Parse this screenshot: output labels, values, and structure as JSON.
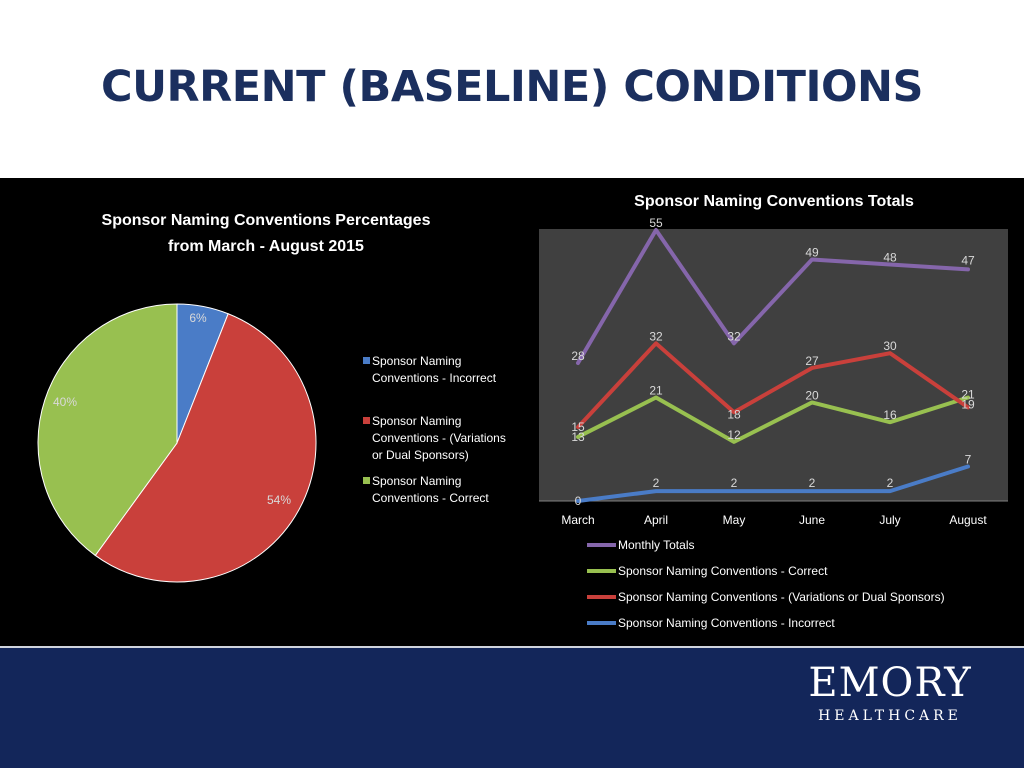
{
  "slide": {
    "title": "CURRENT (BASELINE) CONDITIONS"
  },
  "brand": {
    "logo_word": "EMORY",
    "logo_sub": "HEALTHCARE"
  },
  "colors": {
    "title": "#1b2f5e",
    "footer": "#13265a",
    "incorrect": "#4a7cc7",
    "variations": "#c9403b",
    "correct": "#98c050",
    "monthly": "#8566ab"
  },
  "chart_data": [
    {
      "type": "pie",
      "title": "Sponsor Naming Conventions Percentages from March - August 2015",
      "title_lines": [
        "Sponsor Naming Conventions Percentages",
        "from March - August 2015"
      ],
      "slices": [
        {
          "label": "Sponsor Naming Conventions - Incorrect",
          "legend_lines": [
            "Sponsor Naming",
            "Conventions - Incorrect"
          ],
          "value": 6,
          "display": "6%",
          "color": "#4a7cc7"
        },
        {
          "label": "Sponsor Naming Conventions - (Variations or Dual Sponsors)",
          "legend_lines": [
            "Sponsor Naming",
            "Conventions - (Variations",
            "or Dual Sponsors)"
          ],
          "value": 54,
          "display": "54%",
          "color": "#c9403b"
        },
        {
          "label": "Sponsor Naming Conventions - Correct",
          "legend_lines": [
            "Sponsor Naming",
            "Conventions - Correct"
          ],
          "value": 40,
          "display": "40%",
          "color": "#98c050"
        }
      ],
      "legend": "right"
    },
    {
      "type": "line",
      "title": "Sponsor Naming Conventions Totals",
      "categories": [
        "March",
        "April",
        "May",
        "June",
        "July",
        "August"
      ],
      "ylim": [
        0,
        60
      ],
      "grid": false,
      "legend": "bottom",
      "series": [
        {
          "name": "Monthly Totals",
          "values": [
            28,
            55,
            32,
            49,
            48,
            47
          ],
          "color": "#8566ab"
        },
        {
          "name": "Sponsor Naming Conventions - Correct",
          "values": [
            13,
            21,
            12,
            20,
            16,
            21
          ],
          "color": "#98c050"
        },
        {
          "name": "Sponsor Naming Conventions - (Variations or Dual Sponsors)",
          "values": [
            15,
            32,
            18,
            27,
            30,
            19
          ],
          "color": "#c9403b"
        },
        {
          "name": "Sponsor Naming Conventions - Incorrect",
          "values": [
            0,
            2,
            2,
            2,
            2,
            7
          ],
          "color": "#4a7cc7"
        }
      ]
    }
  ]
}
